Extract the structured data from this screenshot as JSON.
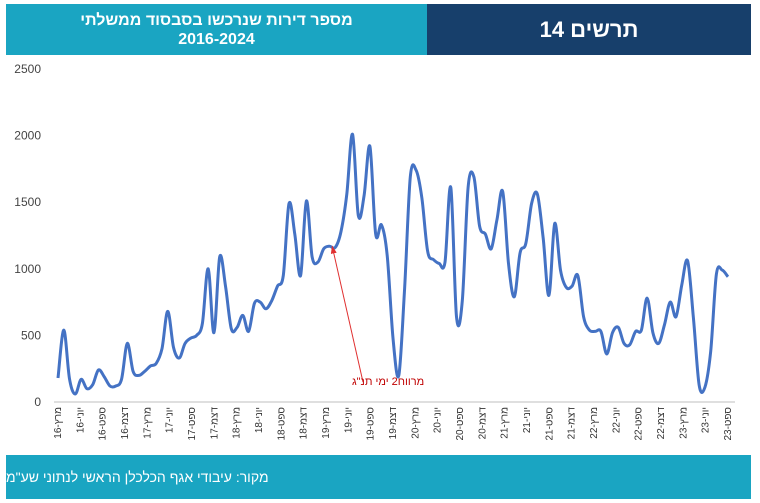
{
  "header": {
    "subtitle_line1": "מספר דירות שנרכשו בסבסוד ממשלתי",
    "subtitle_line2": "2016-2024",
    "figure_label": "תרשים 14"
  },
  "footer": {
    "source": "מקור: עיבודי אגף הכלכלן הראשי לנתוני שע\"מ"
  },
  "colors": {
    "line": "#4472c4",
    "header_left_bg": "#1aa5c2",
    "header_right_bg": "#173f6b",
    "footer_bg": "#1aa5c2",
    "annotation": "#e03030"
  },
  "chart_data": {
    "type": "line",
    "title": "",
    "xlabel": "",
    "ylabel": "",
    "ylim": [
      0,
      2500
    ],
    "yticks": [
      0,
      500,
      1000,
      1500,
      2000,
      2500
    ],
    "grid": false,
    "xtick_labels": [
      "מרץ-16",
      "יוני-16",
      "ספט-16",
      "דצמ-16",
      "מרץ-17",
      "יוני-17",
      "ספט-17",
      "דצמ-17",
      "מרץ-18",
      "יוני-18",
      "ספט-18",
      "דצמ-18",
      "מרץ-19",
      "יוני-19",
      "ספט-19",
      "דצמ-19",
      "מרץ-20",
      "יוני-20",
      "ספט-20",
      "דצמ-20",
      "מרץ-21",
      "יוני-21",
      "ספט-21",
      "דצמ-21",
      "מרץ-22",
      "יוני-22",
      "ספט-22",
      "דצמ-22",
      "מרץ-23",
      "יוני-23",
      "ספט-23"
    ],
    "annotation": {
      "text": "מרווח2 ימי תנ\"ג",
      "x_index": 48
    },
    "series": [
      {
        "values": [
          180,
          540,
          170,
          60,
          170,
          100,
          130,
          240,
          190,
          120,
          120,
          170,
          440,
          230,
          200,
          230,
          270,
          290,
          400,
          680,
          410,
          330,
          440,
          480,
          500,
          590,
          1000,
          520,
          1090,
          870,
          550,
          560,
          650,
          530,
          740,
          750,
          700,
          760,
          870,
          950,
          1490,
          1260,
          950,
          1510,
          1090,
          1050,
          1150,
          1170,
          1160,
          1280,
          1560,
          2010,
          1400,
          1550,
          1920,
          1260,
          1330,
          1100,
          480,
          200,
          850,
          1690,
          1740,
          1530,
          1130,
          1070,
          1040,
          1050,
          1610,
          640,
          760,
          1610,
          1690,
          1320,
          1260,
          1150,
          1370,
          1580,
          1040,
          790,
          1120,
          1190,
          1490,
          1560,
          1230,
          800,
          1340,
          990,
          860,
          870,
          950,
          640,
          540,
          530,
          530,
          360,
          520,
          560,
          440,
          430,
          530,
          540,
          780,
          520,
          440,
          580,
          750,
          640,
          880,
          1060,
          640,
          130,
          110,
          380,
          960,
          990,
          940
        ]
      }
    ]
  }
}
